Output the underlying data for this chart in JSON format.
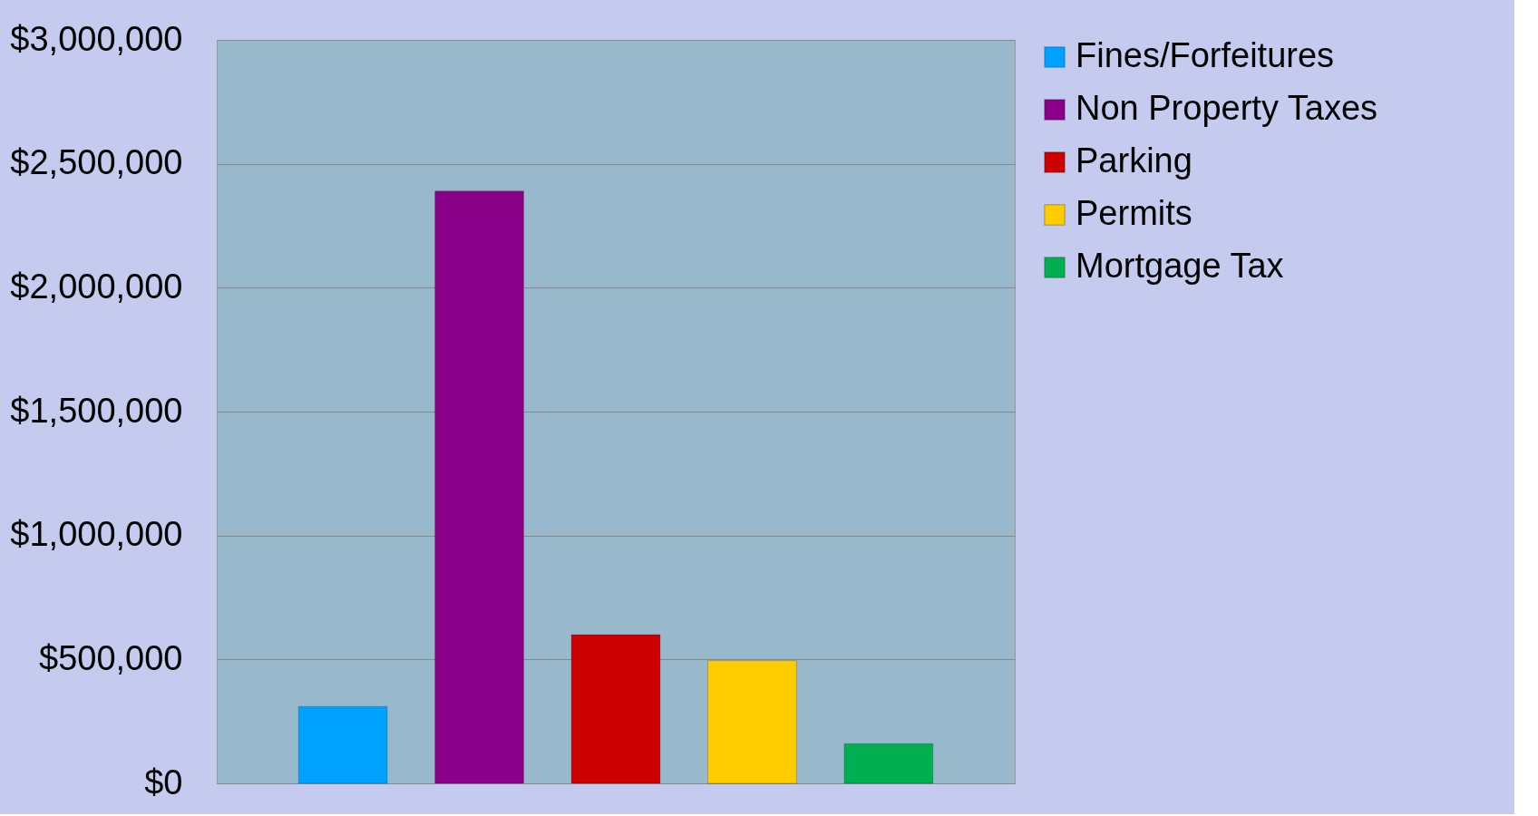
{
  "chart_data": {
    "type": "bar",
    "categories": [
      null
    ],
    "series": [
      {
        "name": "Fines/Forfeitures",
        "color": "#00a2ff",
        "values": [
          310000
        ]
      },
      {
        "name": "Non Property Taxes",
        "color": "#8b0089",
        "values": [
          2390000
        ]
      },
      {
        "name": "Parking",
        "color": "#cc0000",
        "values": [
          600000
        ]
      },
      {
        "name": "Permits",
        "color": "#ffcc00",
        "values": [
          495000
        ]
      },
      {
        "name": "Mortgage Tax",
        "color": "#00b050",
        "values": [
          160000
        ]
      }
    ],
    "ylim": [
      0,
      3000000
    ],
    "yticks": [
      {
        "value": 0,
        "label": "$0"
      },
      {
        "value": 500000,
        "label": "$500,000"
      },
      {
        "value": 1000000,
        "label": "$1,000,000"
      },
      {
        "value": 1500000,
        "label": "$1,500,000"
      },
      {
        "value": 2000000,
        "label": "$2,000,000"
      },
      {
        "value": 2500000,
        "label": "$2,500,000"
      },
      {
        "value": 3000000,
        "label": "$3,000,000"
      }
    ],
    "grid": "y",
    "legend": "right",
    "tick_labels": "y"
  }
}
